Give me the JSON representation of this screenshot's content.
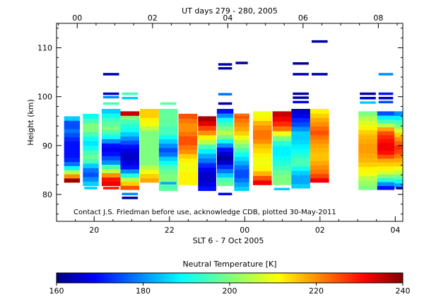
{
  "chart_data": {
    "type": "heatmap",
    "title": "UT days 279 - 280, 2005",
    "xlabel": "SLT 6 - 7 Oct 2005",
    "ylabel": "Height (km)",
    "annotation": "Contact J.S. Friedman before use, acknowledge CDB, plotted 30-May-2011",
    "x_bottom_range_hours": [
      19,
      28.2
    ],
    "x_bottom_ticks": [
      "20",
      "22",
      "00",
      "02",
      "04"
    ],
    "x_top_ticks": [
      "00",
      "02",
      "04",
      "06",
      "08"
    ],
    "ylim": [
      74.5,
      115
    ],
    "y_ticks": [
      "80",
      "90",
      "100",
      "110"
    ],
    "colorbar": {
      "label": "Neutral Temperature [K]",
      "range": [
        160,
        240
      ],
      "ticks": [
        "160",
        "180",
        "200",
        "220",
        "240"
      ]
    },
    "profiles": [
      {
        "t": 19.2,
        "dt": 0.42,
        "top": 96.0,
        "bottom": 82.5,
        "temps": [
          238,
          220,
          205,
          190,
          178,
          172,
          170,
          170,
          170,
          170,
          172,
          175,
          178,
          175,
          175,
          185
        ]
      },
      {
        "t": 19.7,
        "dt": 0.42,
        "top": 96.5,
        "bottom": 81.8,
        "temps": [
          185,
          180,
          175,
          178,
          185,
          195,
          198,
          195,
          190,
          187,
          190,
          195,
          200,
          200,
          195,
          190
        ]
      },
      {
        "t": 20.2,
        "dt": 0.5,
        "top": 97.5,
        "bottom": 81.8,
        "temps": [
          232,
          230,
          220,
          205,
          195,
          180,
          175,
          170,
          168,
          170,
          180,
          190,
          195,
          200,
          197,
          195,
          190,
          185
        ]
      },
      {
        "t": 20.7,
        "dt": 0.5,
        "top": 97.0,
        "bottom": 81.0,
        "temps": [
          225,
          215,
          205,
          192,
          180,
          170,
          167,
          165,
          165,
          167,
          170,
          175,
          180,
          185,
          190,
          192,
          195,
          200,
          235
        ]
      },
      {
        "t": 21.22,
        "dt": 0.5,
        "top": 97.5,
        "bottom": 82.5,
        "temps": [
          218,
          215,
          210,
          205,
          200,
          200,
          200,
          200,
          200,
          200,
          200,
          200,
          205,
          210,
          212,
          215,
          215
        ]
      },
      {
        "t": 21.72,
        "dt": 0.5,
        "top": 97.5,
        "bottom": 80.8,
        "temps": [
          197,
          198,
          200,
          200,
          198,
          195,
          190,
          185,
          178,
          175,
          180,
          185,
          190,
          195,
          195,
          197,
          197,
          198,
          197
        ]
      },
      {
        "t": 22.24,
        "dt": 0.5,
        "top": 96.5,
        "bottom": 82.0,
        "temps": [
          212,
          212,
          212,
          210,
          210,
          212,
          215,
          220,
          222,
          225,
          225,
          222,
          220,
          220,
          222,
          225
        ]
      },
      {
        "t": 22.76,
        "dt": 0.48,
        "top": 96.0,
        "bottom": 80.8,
        "temps": [
          170,
          167,
          165,
          165,
          168,
          172,
          178,
          182,
          188,
          195,
          205,
          212,
          220,
          226,
          233,
          237
        ]
      },
      {
        "t": 23.26,
        "dt": 0.44,
        "top": 97.5,
        "bottom": 81.8,
        "temps": [
          198,
          195,
          185,
          178,
          172,
          165,
          162,
          165,
          170,
          180,
          190,
          200,
          205,
          200,
          195,
          190,
          180,
          170
        ]
      },
      {
        "t": 23.72,
        "dt": 0.4,
        "top": 96.5,
        "bottom": 80.8,
        "temps": [
          185,
          182,
          178,
          175,
          175,
          178,
          182,
          186,
          190,
          195,
          200,
          205,
          210,
          215,
          218,
          220,
          222,
          225
        ]
      },
      {
        "t": 24.22,
        "dt": 0.5,
        "top": 97.0,
        "bottom": 82.0,
        "temps": [
          232,
          225,
          217,
          212,
          210,
          210,
          212,
          214,
          216,
          220,
          222,
          222,
          220,
          217,
          212,
          210
        ]
      },
      {
        "t": 24.74,
        "dt": 0.5,
        "top": 97.0,
        "bottom": 82.0,
        "temps": [
          200,
          200,
          198,
          195,
          192,
          190,
          188,
          188,
          192,
          200,
          210,
          222,
          228,
          232,
          235
        ]
      },
      {
        "t": 25.24,
        "dt": 0.5,
        "top": 97.5,
        "bottom": 81.3,
        "temps": [
          185,
          182,
          182,
          185,
          190,
          195,
          195,
          192,
          190,
          188,
          186,
          185,
          185,
          180,
          175,
          172,
          168,
          165
        ]
      },
      {
        "t": 25.74,
        "dt": 0.5,
        "top": 97.5,
        "bottom": 82.5,
        "temps": [
          232,
          226,
          222,
          220,
          218,
          216,
          216,
          217,
          218,
          220,
          222,
          225,
          223,
          220,
          218,
          215,
          212
        ]
      },
      {
        "t": 27.02,
        "dt": 0.5,
        "top": 97.0,
        "bottom": 81.0,
        "temps": [
          200,
          202,
          205,
          210,
          212,
          215,
          217,
          218,
          219,
          219,
          218,
          217,
          215,
          212,
          208,
          205,
          200
        ]
      },
      {
        "t": 27.52,
        "dt": 0.46,
        "top": 97.0,
        "bottom": 81.0,
        "temps": [
          170,
          180,
          192,
          200,
          208,
          212,
          215,
          218,
          225,
          230,
          232,
          232,
          230,
          228,
          225,
          218,
          205,
          195,
          188,
          175
        ]
      },
      {
        "t": 27.98,
        "dt": 0.4,
        "top": 97.0,
        "bottom": 81.5,
        "temps": [
          182,
          190,
          198,
          205,
          210,
          215,
          218,
          222,
          226,
          228,
          224,
          220,
          215,
          208,
          200,
          195,
          188,
          180
        ]
      }
    ],
    "segments": [
      {
        "t": 20.2,
        "dt": 0.5,
        "h": 104.5,
        "temp": 163
      },
      {
        "t": 20.2,
        "dt": 0.5,
        "h": 100.5,
        "temp": 165
      },
      {
        "t": 20.2,
        "dt": 0.5,
        "h": 99.8,
        "temp": 180
      },
      {
        "t": 20.2,
        "dt": 0.5,
        "h": 98.5,
        "temp": 195
      },
      {
        "t": 20.7,
        "dt": 0.5,
        "h": 100.5,
        "temp": 195
      },
      {
        "t": 20.7,
        "dt": 0.5,
        "h": 99.6,
        "temp": 185
      },
      {
        "t": 20.7,
        "dt": 0.5,
        "h": 80.0,
        "temp": 180
      },
      {
        "t": 20.7,
        "dt": 0.5,
        "h": 79.2,
        "temp": 162
      },
      {
        "t": 21.72,
        "dt": 0.5,
        "h": 98.5,
        "temp": 197
      },
      {
        "t": 23.26,
        "dt": 0.44,
        "h": 106.5,
        "temp": 162
      },
      {
        "t": 23.26,
        "dt": 0.44,
        "h": 105.7,
        "temp": 162
      },
      {
        "t": 23.26,
        "dt": 0.44,
        "h": 100.4,
        "temp": 178
      },
      {
        "t": 23.26,
        "dt": 0.44,
        "h": 98.5,
        "temp": 162
      },
      {
        "t": 23.26,
        "dt": 0.44,
        "h": 80.0,
        "temp": 168
      },
      {
        "t": 23.72,
        "dt": 0.4,
        "h": 106.8,
        "temp": 162
      },
      {
        "t": 23.72,
        "dt": 0.4,
        "h": 96.2,
        "temp": 222
      },
      {
        "t": 24.74,
        "dt": 0.5,
        "h": 81.0,
        "temp": 185
      },
      {
        "t": 25.24,
        "dt": 0.5,
        "h": 106.7,
        "temp": 162
      },
      {
        "t": 25.74,
        "dt": 0.5,
        "h": 104.5,
        "temp": 163
      },
      {
        "t": 25.74,
        "dt": 0.5,
        "h": 111.2,
        "temp": 163
      },
      {
        "t": 25.24,
        "dt": 0.5,
        "h": 104.5,
        "temp": 163
      },
      {
        "t": 25.24,
        "dt": 0.5,
        "h": 100.5,
        "temp": 162
      },
      {
        "t": 25.24,
        "dt": 0.5,
        "h": 99.7,
        "temp": 162
      },
      {
        "t": 25.24,
        "dt": 0.5,
        "h": 98.8,
        "temp": 168
      },
      {
        "t": 27.02,
        "dt": 0.5,
        "h": 100.5,
        "temp": 162
      },
      {
        "t": 27.02,
        "dt": 0.5,
        "h": 99.6,
        "temp": 165
      },
      {
        "t": 27.02,
        "dt": 0.5,
        "h": 98.7,
        "temp": 185
      },
      {
        "t": 27.52,
        "dt": 0.46,
        "h": 104.5,
        "temp": 180
      },
      {
        "t": 27.52,
        "dt": 0.46,
        "h": 100.5,
        "temp": 170
      },
      {
        "t": 27.52,
        "dt": 0.46,
        "h": 99.6,
        "temp": 165
      },
      {
        "t": 27.52,
        "dt": 0.46,
        "h": 98.8,
        "temp": 175
      },
      {
        "t": 27.98,
        "dt": 0.4,
        "h": 81.2,
        "temp": 162
      },
      {
        "t": 19.7,
        "dt": 0.42,
        "h": 81.2,
        "temp": 185
      },
      {
        "t": 21.72,
        "dt": 0.5,
        "h": 82.2,
        "temp": 182
      },
      {
        "t": 21.72,
        "dt": 0.5,
        "h": 81.4,
        "temp": 195
      },
      {
        "t": 20.2,
        "dt": 0.5,
        "h": 81.2,
        "temp": 230
      }
    ]
  }
}
